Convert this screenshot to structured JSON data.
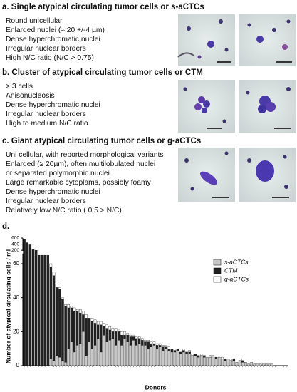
{
  "panels": [
    {
      "heading": "a. Single atypical circulating tumor cells or s-aCTCs",
      "lines": [
        "Round unicellular",
        "Enlarged nuclei (≈ 20 +/-4 µm)",
        "Dense hyperchromatic nuclei",
        "Irregular nuclear borders",
        "High N/C ratio (N/C > 0.75)"
      ]
    },
    {
      "heading": "b. Cluster of atypical circulating tumor cells or CTM",
      "lines": [
        "> 3 cells",
        "Anisonucleosis",
        "Dense hyperchromatic nuclei",
        "Irregular nuclear borders",
        "High to medium N/C ratio"
      ]
    },
    {
      "heading": "c. Giant atypical circulating tumor cells or g-aCTCs",
      "lines": [
        "Uni cellular, with reported morphological variants",
        "Enlarged (≥ 20µm), often multilobulated nuclei",
        "or separated polymorphic nuclei",
        "Large remarkable cytoplams, possibly foamy",
        "Dense hyperchromatic nuclei",
        "Irregular nuclear borders",
        "Relatively low N/C ratio ( 0.5 > N/C)"
      ]
    }
  ],
  "chart_label": "d.",
  "chart_data": {
    "type": "bar",
    "stacked": true,
    "y_label": "Number of atypical circulating cells / ml",
    "x_label": "Donors",
    "categories": [
      null,
      null,
      null,
      null,
      null,
      null,
      null,
      null,
      null,
      null,
      null,
      null,
      null,
      null,
      null,
      null,
      null,
      null,
      null,
      null,
      null,
      null,
      null,
      null,
      null,
      null,
      null,
      null,
      null,
      null,
      null,
      null,
      null,
      null,
      null,
      null,
      null,
      null,
      null,
      null,
      null,
      null,
      null,
      null,
      null,
      null,
      null,
      null,
      null,
      null,
      null,
      null,
      null,
      null,
      null,
      null,
      null,
      null,
      null,
      null,
      null,
      null,
      null,
      null,
      null,
      null,
      null,
      null,
      null,
      null,
      null,
      null,
      null,
      null,
      null,
      null,
      null,
      null,
      null,
      null,
      null,
      null,
      null,
      null,
      null,
      null,
      null,
      null,
      null,
      null
    ],
    "series": [
      {
        "name": "s-aCTCs",
        "color": "#c8c8c8",
        "values": [
          0,
          0,
          0,
          0,
          0,
          0,
          0,
          0,
          0,
          4,
          3,
          6,
          5,
          3,
          2,
          10,
          14,
          8,
          12,
          13,
          20,
          6,
          14,
          10,
          12,
          16,
          8,
          18,
          14,
          15,
          16,
          12,
          15,
          12,
          16,
          14,
          12,
          15,
          12,
          13,
          12,
          12,
          10,
          11,
          12,
          10,
          11,
          9,
          10,
          9,
          8,
          8,
          9,
          7,
          8,
          7,
          7,
          6,
          6,
          5,
          6,
          5,
          5,
          5,
          6,
          4,
          5,
          4,
          3,
          4,
          3,
          3,
          2,
          3,
          2,
          2,
          1,
          2,
          1,
          1,
          1,
          1,
          1,
          1,
          1,
          0,
          0,
          0,
          0,
          0
        ]
      },
      {
        "name": "CTM",
        "color": "#222222",
        "values": [
          560,
          442,
          380,
          220,
          200,
          65,
          65,
          65,
          65,
          54,
          50,
          40,
          40,
          36,
          33,
          24,
          20,
          24,
          20,
          18,
          10,
          22,
          14,
          16,
          13,
          8,
          16,
          5,
          8,
          6,
          4,
          8,
          5,
          6,
          2,
          4,
          5,
          2,
          4,
          3,
          3,
          2,
          4,
          2,
          1,
          2,
          1,
          2,
          1,
          1,
          2,
          1,
          1,
          1,
          1,
          1,
          1,
          0,
          1,
          1,
          0,
          1,
          0,
          0,
          0,
          1,
          0,
          0,
          1,
          0,
          0,
          1,
          0,
          0,
          1,
          0,
          0,
          0,
          0,
          0,
          0,
          0,
          0,
          0,
          0,
          0,
          0,
          0,
          0,
          0
        ]
      },
      {
        "name": "g-aCTCs",
        "color": "#ffffff",
        "values": [
          0,
          8,
          0,
          0,
          0,
          0,
          0,
          0,
          0,
          2,
          2,
          2,
          1,
          1,
          1,
          2,
          1,
          2,
          1,
          2,
          2,
          2,
          1,
          2,
          2,
          2,
          2,
          2,
          2,
          2,
          2,
          2,
          1,
          2,
          2,
          1,
          1,
          1,
          1,
          1,
          1,
          1,
          1,
          1,
          1,
          1,
          1,
          1,
          1,
          1,
          0,
          1,
          0,
          0,
          1,
          0,
          1,
          1,
          0,
          0,
          1,
          0,
          0,
          1,
          0,
          0,
          0,
          1,
          0,
          0,
          1,
          0,
          0,
          0,
          1,
          0,
          0,
          0,
          0,
          0,
          0,
          0,
          0,
          0,
          0,
          0,
          0,
          0,
          0,
          0
        ]
      }
    ],
    "ylim": [
      0,
      600
    ],
    "ybreak": [
      66,
      180
    ],
    "yticks": [
      0,
      20,
      40,
      60,
      200,
      400,
      600
    ],
    "legend": "upper right"
  }
}
